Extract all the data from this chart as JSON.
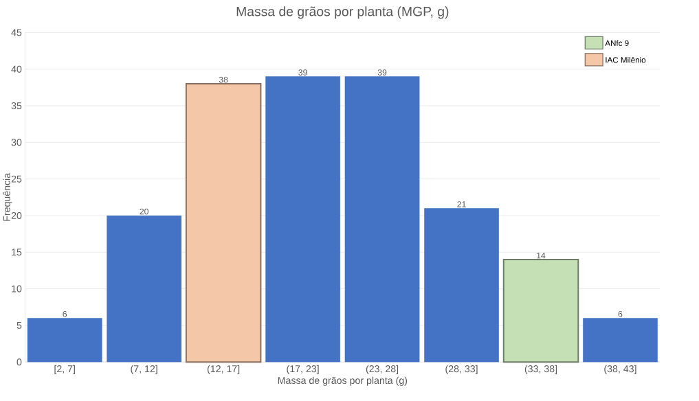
{
  "chart_data": {
    "type": "bar",
    "title": "Massa de grãos por planta (MGP, g)",
    "xlabel": "Massa de grãos por planta (g)",
    "ylabel": "Frequência",
    "categories": [
      "[2, 7]",
      "(7, 12]",
      "(12, 17]",
      "(17, 23]",
      "(23, 28]",
      "(28, 33]",
      "(33, 38]",
      "(38, 43]"
    ],
    "series": [
      {
        "color": "#4472c4",
        "values": [
          6,
          20,
          null,
          39,
          39,
          21,
          null,
          6
        ]
      },
      {
        "name": "ANfc 9",
        "color": "#c5e0b4",
        "values": [
          null,
          null,
          null,
          null,
          null,
          null,
          14,
          null
        ]
      },
      {
        "name": "IAC Milênio",
        "color": "#f4c7a9",
        "values": [
          null,
          null,
          38,
          null,
          null,
          null,
          null,
          null
        ]
      }
    ],
    "ylim": [
      0,
      45
    ],
    "yticks": [
      0,
      5,
      10,
      15,
      20,
      25,
      30,
      35,
      40,
      45
    ],
    "grid": "y",
    "legend": "top right",
    "data_labels": true
  }
}
